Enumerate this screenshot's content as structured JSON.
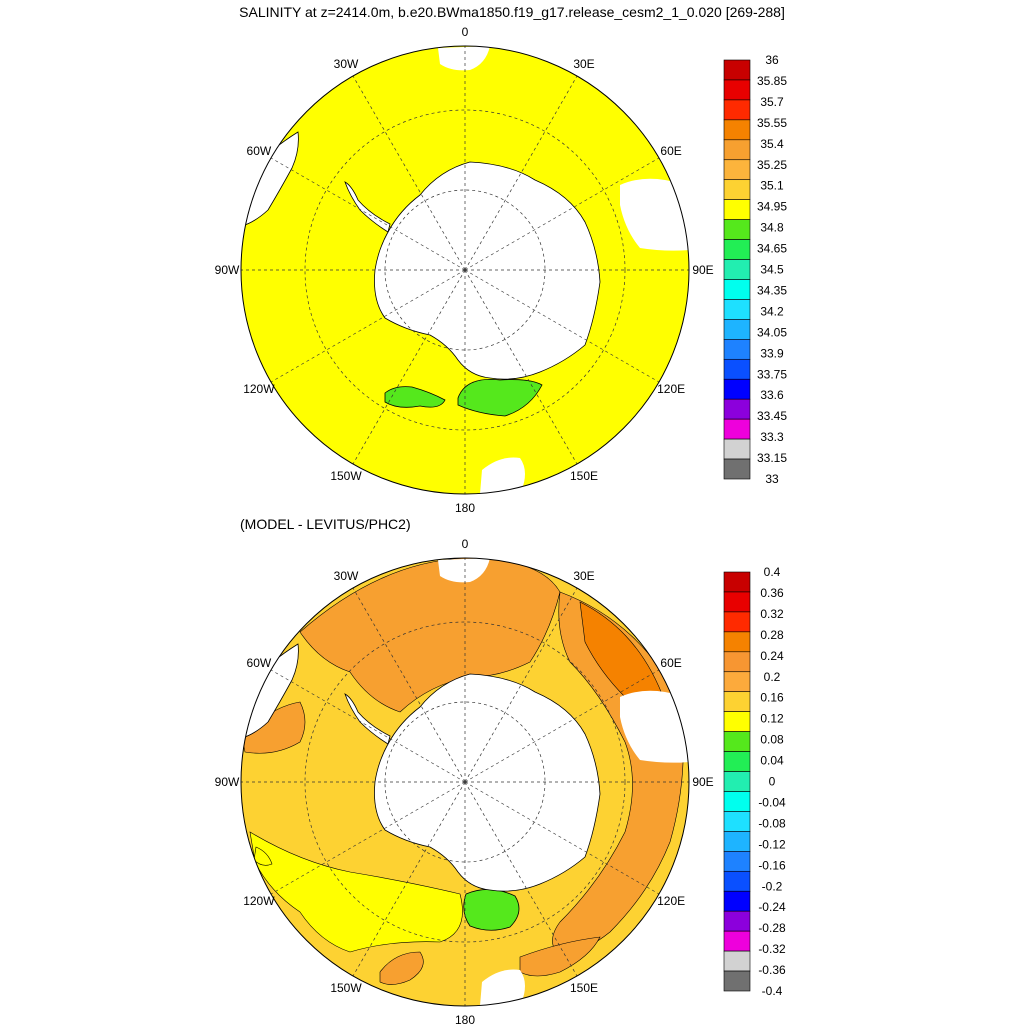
{
  "titles": {
    "main": "SALINITY at z=2414.0m, b.e20.BWma1850.f19_g17.release_cesm2_1_0.020 [269-288]",
    "difference": "(MODEL - LEVITUS/PHC2)"
  },
  "longitude_labels": [
    {
      "angle": 0,
      "text": "0"
    },
    {
      "angle": 30,
      "text": "30E"
    },
    {
      "angle": 60,
      "text": "60E"
    },
    {
      "angle": 90,
      "text": "90E"
    },
    {
      "angle": 120,
      "text": "120E"
    },
    {
      "angle": 150,
      "text": "150E"
    },
    {
      "angle": 180,
      "text": "180"
    },
    {
      "angle": 210,
      "text": "150W"
    },
    {
      "angle": 240,
      "text": "120W"
    },
    {
      "angle": 270,
      "text": "90W"
    },
    {
      "angle": 300,
      "text": "60W"
    },
    {
      "angle": 330,
      "text": "30W"
    }
  ],
  "colorbars": {
    "salinity": {
      "labels": [
        "36",
        "35.85",
        "35.7",
        "35.55",
        "35.4",
        "35.25",
        "35.1",
        "34.95",
        "34.8",
        "34.65",
        "34.5",
        "34.35",
        "34.2",
        "34.05",
        "33.9",
        "33.75",
        "33.6",
        "33.45",
        "33.3",
        "33.15",
        "33"
      ],
      "colors": [
        "#c80000",
        "#e80000",
        "#ff2a00",
        "#f58200",
        "#f7a030",
        "#fcb43c",
        "#fdd232",
        "#ffff00",
        "#55e81c",
        "#22ee55",
        "#22eeb0",
        "#00ffee",
        "#1ee0ff",
        "#1eb4ff",
        "#1e82ff",
        "#0a50ff",
        "#0000ff",
        "#8c00dc",
        "#ee00dc",
        "#d2d2d2",
        "#707070"
      ]
    },
    "difference": {
      "labels": [
        "0.4",
        "0.36",
        "0.32",
        "0.28",
        "0.24",
        "0.2",
        "0.16",
        "0.12",
        "0.08",
        "0.04",
        "0",
        "-0.04",
        "-0.08",
        "-0.12",
        "-0.16",
        "-0.2",
        "-0.24",
        "-0.28",
        "-0.32",
        "-0.36",
        "-0.4"
      ],
      "colors": [
        "#c80000",
        "#e80000",
        "#ff2a00",
        "#f58200",
        "#f79632",
        "#fcaa3c",
        "#fdd232",
        "#ffff00",
        "#55e81c",
        "#22ee55",
        "#22eeb0",
        "#00ffee",
        "#1ee0ff",
        "#1eb4ff",
        "#1e82ff",
        "#0a50ff",
        "#0000ff",
        "#8c00dc",
        "#ee00dc",
        "#d2d2d2",
        "#707070"
      ]
    }
  },
  "maps": {
    "salinity": {
      "ocean_color": "#ffff00",
      "low_salinity_color": "#55e81c",
      "land_color": "#ffffff"
    },
    "difference": {
      "ocean_color": "#fdd232",
      "positive_color": "#f7a030",
      "stronger_color": "#f58200",
      "weak_color": "#ffff00",
      "green_color": "#55e81c",
      "land_color": "#ffffff"
    }
  }
}
